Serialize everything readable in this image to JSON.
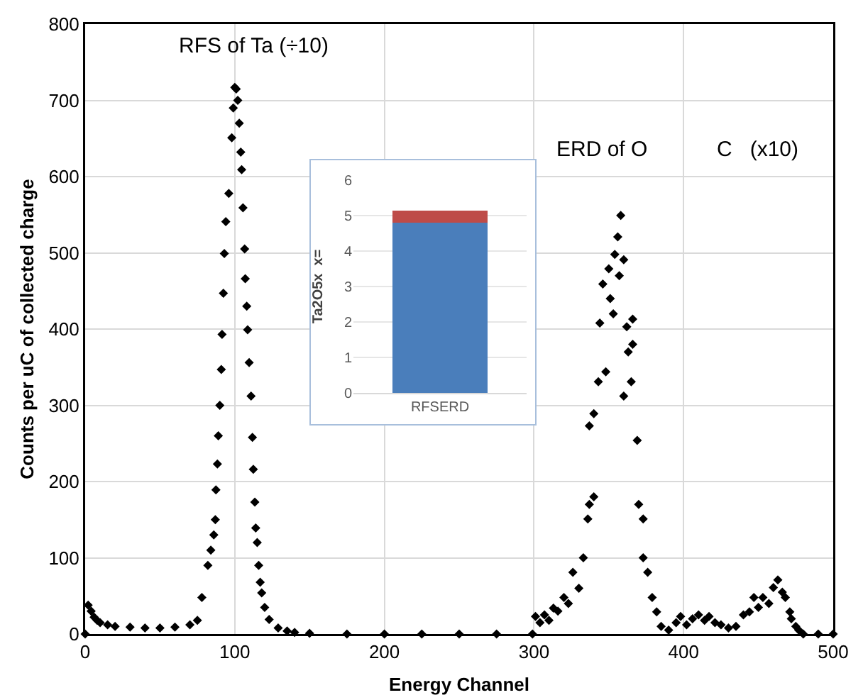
{
  "chart_data": [
    {
      "type": "scatter",
      "xlabel": "Energy Channel",
      "ylabel": "Counts per uC of collected charge",
      "xlim": [
        0,
        500
      ],
      "xticks": [
        0,
        100,
        200,
        300,
        400,
        500
      ],
      "ylim": [
        0,
        800
      ],
      "yticks": [
        0,
        100,
        200,
        300,
        400,
        500,
        600,
        700,
        800
      ],
      "grid": true,
      "marker": "diamond",
      "annotations": [
        "RFS of Ta (÷10)",
        "ERD of O",
        "C   (x10)"
      ],
      "series": [
        {
          "color": "#000000",
          "x": [
            0,
            2,
            4,
            6,
            8,
            10,
            15,
            20,
            30,
            40,
            50,
            60,
            70,
            75,
            78,
            82,
            84,
            86,
            87,
            87.4,
            88.4,
            89,
            90,
            91,
            91.5,
            92.4,
            93,
            94,
            96,
            98,
            99,
            100,
            101,
            102,
            103,
            104,
            104.6,
            105.5,
            106.6,
            107,
            108,
            108.6,
            109.6,
            110.9,
            111.8,
            112.4,
            113.4,
            114,
            115,
            116,
            117,
            118,
            120,
            123,
            129,
            135,
            140,
            150,
            175,
            200,
            225,
            250,
            275,
            299,
            301,
            304,
            307,
            310,
            313,
            316,
            320,
            323,
            326,
            330,
            333,
            336,
            337,
            340,
            337,
            340,
            343,
            344,
            346,
            348,
            350,
            351,
            353,
            354,
            356,
            358,
            357,
            360,
            360,
            362,
            363,
            365,
            366,
            366,
            369,
            370,
            373,
            373,
            376,
            379,
            382,
            385,
            390,
            395,
            398,
            402,
            406,
            410,
            414,
            417,
            421,
            425,
            430,
            435,
            440,
            444,
            447,
            450,
            453,
            457,
            460,
            463,
            466,
            468,
            471,
            472,
            475,
            477,
            480,
            490,
            500
          ],
          "values": [
            0,
            38,
            30,
            22,
            18,
            15,
            12,
            10,
            9,
            8,
            8,
            9,
            12,
            18,
            48,
            90,
            110,
            130,
            150,
            189,
            223,
            260,
            300,
            347,
            393,
            447,
            499,
            541,
            578,
            651,
            690,
            717,
            715,
            700,
            670,
            632,
            609,
            559,
            505,
            466,
            430,
            399,
            356,
            312,
            258,
            216,
            173,
            139,
            120,
            90,
            68,
            54,
            35,
            19,
            8,
            4,
            2,
            1,
            0,
            0,
            0,
            0,
            0,
            0,
            23,
            15,
            25,
            18,
            34,
            30,
            48,
            40,
            81,
            60,
            100,
            151,
            170,
            180,
            273,
            289,
            331,
            408,
            459,
            344,
            479,
            440,
            420,
            498,
            521,
            549,
            470,
            491,
            312,
            403,
            370,
            331,
            380,
            413,
            254,
            170,
            151,
            100,
            81,
            48,
            29,
            10,
            5,
            15,
            23,
            12,
            20,
            25,
            18,
            23,
            15,
            12,
            8,
            10,
            25,
            29,
            48,
            35,
            48,
            40,
            61,
            71,
            55,
            48,
            29,
            20,
            10,
            5,
            0,
            0,
            0
          ]
        }
      ]
    },
    {
      "type": "bar",
      "stacked": true,
      "ylabel": "Ta2O5x  x=",
      "categories": [
        "RFSERD"
      ],
      "ylim": [
        0,
        6
      ],
      "yticks": [
        0,
        1,
        2,
        3,
        4,
        5,
        6
      ],
      "grid": "y",
      "series": [
        {
          "color": "#4a7ebb",
          "values": [
            4.8
          ]
        },
        {
          "color": "#be4b48",
          "values": [
            0.35
          ]
        }
      ]
    }
  ]
}
